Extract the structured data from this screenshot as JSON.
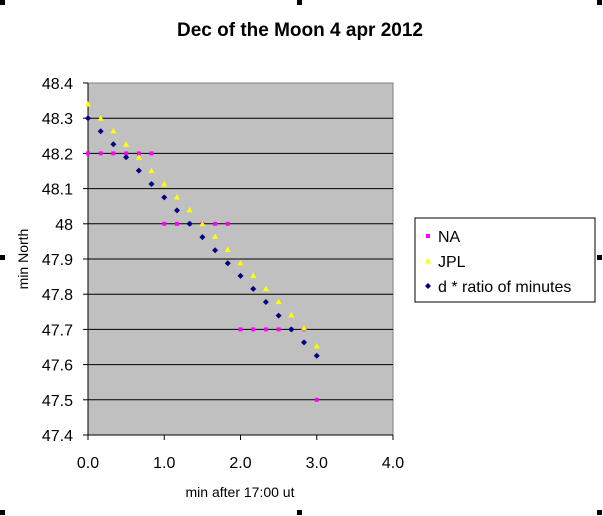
{
  "chart_data": {
    "type": "scatter",
    "title": "Dec of the Moon 4 apr 2012",
    "xlabel": "min after 17:00 ut",
    "ylabel": "min North",
    "xlim": [
      0,
      4
    ],
    "ylim": [
      47.4,
      48.4
    ],
    "x_ticks": [
      "0.0",
      "1.0",
      "2.0",
      "3.0",
      "4.0"
    ],
    "y_ticks": [
      "48.4",
      "48.3",
      "48.2",
      "48.1",
      "48",
      "47.9",
      "47.8",
      "47.7",
      "47.6",
      "47.5",
      "47.4"
    ],
    "grid": "horizontal",
    "plot_background": "#c0c0c0",
    "legend_position": "right",
    "series": [
      {
        "name": "NA",
        "color": "#ff00ff",
        "marker": "square",
        "points": [
          [
            0.0,
            48.2
          ],
          [
            0.167,
            48.2
          ],
          [
            0.333,
            48.2
          ],
          [
            0.5,
            48.2
          ],
          [
            0.667,
            48.2
          ],
          [
            0.833,
            48.2
          ],
          [
            1.0,
            48.0
          ],
          [
            1.167,
            48.0
          ],
          [
            1.333,
            48.0
          ],
          [
            1.5,
            48.0
          ],
          [
            1.667,
            48.0
          ],
          [
            1.833,
            48.0
          ],
          [
            2.0,
            47.7
          ],
          [
            2.167,
            47.7
          ],
          [
            2.333,
            47.7
          ],
          [
            2.5,
            47.7
          ],
          [
            2.667,
            47.7
          ],
          [
            2.833,
            47.7
          ],
          [
            3.0,
            47.5
          ]
        ]
      },
      {
        "name": "JPL",
        "color": "#ffff00",
        "marker": "triangle",
        "points": [
          [
            0.0,
            48.34
          ],
          [
            0.167,
            48.3
          ],
          [
            0.333,
            48.264
          ],
          [
            0.5,
            48.226
          ],
          [
            0.667,
            48.189
          ],
          [
            0.833,
            48.151
          ],
          [
            1.0,
            48.113
          ],
          [
            1.167,
            48.076
          ],
          [
            1.333,
            48.04
          ],
          [
            1.5,
            48.0
          ],
          [
            1.667,
            47.964
          ],
          [
            1.833,
            47.927
          ],
          [
            2.0,
            47.889
          ],
          [
            2.167,
            47.853
          ],
          [
            2.333,
            47.816
          ],
          [
            2.5,
            47.779
          ],
          [
            2.667,
            47.741
          ],
          [
            2.833,
            47.704
          ],
          [
            3.0,
            47.653
          ]
        ]
      },
      {
        "name": "d * ratio of minutes",
        "color": "#000080",
        "marker": "diamond",
        "points": [
          [
            0.0,
            48.3
          ],
          [
            0.167,
            48.263
          ],
          [
            0.333,
            48.226
          ],
          [
            0.5,
            48.189
          ],
          [
            0.667,
            48.151
          ],
          [
            0.833,
            48.113
          ],
          [
            1.0,
            48.075
          ],
          [
            1.167,
            48.038
          ],
          [
            1.333,
            48.0
          ],
          [
            1.5,
            47.962
          ],
          [
            1.667,
            47.925
          ],
          [
            1.833,
            47.888
          ],
          [
            2.0,
            47.852
          ],
          [
            2.167,
            47.815
          ],
          [
            2.333,
            47.778
          ],
          [
            2.5,
            47.739
          ],
          [
            2.667,
            47.7
          ],
          [
            2.833,
            47.663
          ],
          [
            3.0,
            47.625
          ]
        ]
      }
    ]
  }
}
